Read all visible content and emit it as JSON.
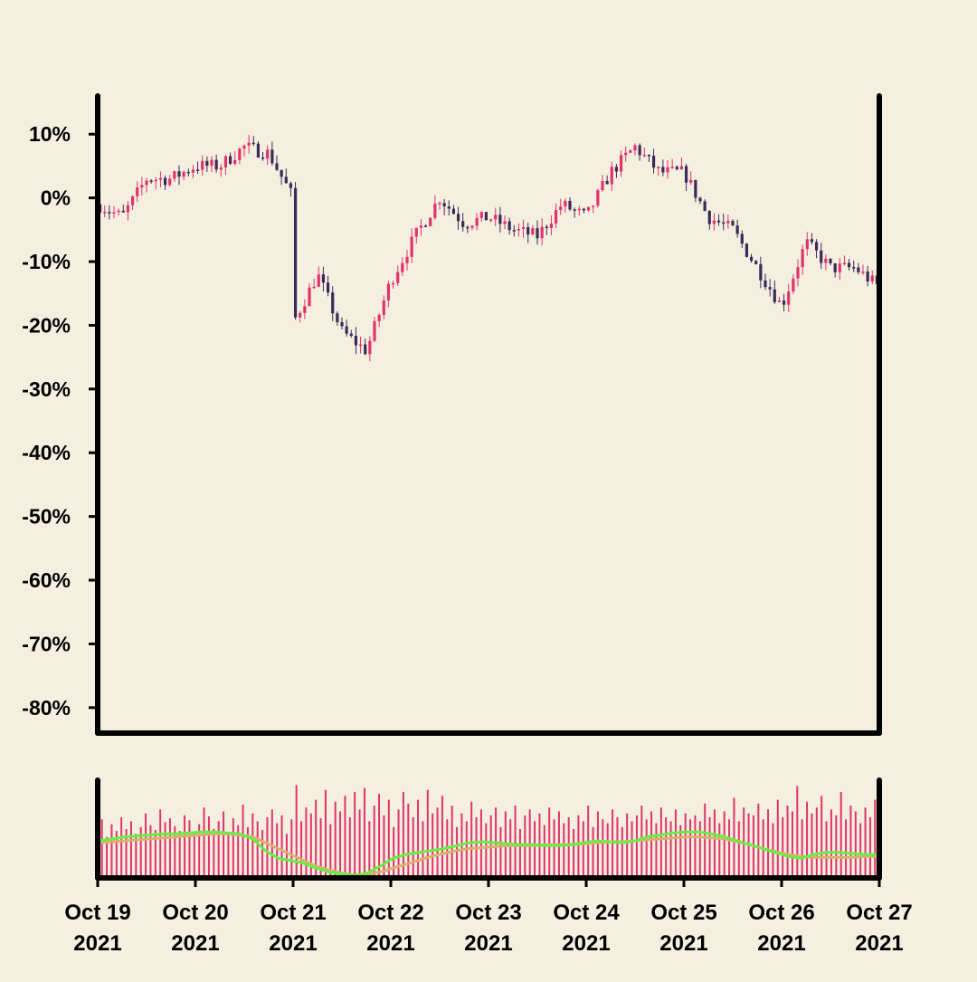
{
  "chart_data": [
    {
      "type": "candlestick",
      "title": "",
      "xlabel": "",
      "ylabel": "",
      "yticks": [
        "10%",
        "0%",
        "-10%",
        "-20%",
        "-30%",
        "-40%",
        "-50%",
        "-60%",
        "-70%",
        "-80%"
      ],
      "ylim": [
        -84,
        16
      ],
      "xlim": [
        "2021-10-19",
        "2021-10-27"
      ],
      "up_color": "#e0336d",
      "down_color": "#3b2a5a",
      "series": [
        {
          "x": [
            "2021-10-19",
            "2021-10-19 06:00",
            "2021-10-19 12:00",
            "2021-10-19 18:00",
            "2021-10-20",
            "2021-10-20 06:00",
            "2021-10-20 12:00",
            "2021-10-20 18:00",
            "2021-10-21",
            "2021-10-21 00:30",
            "2021-10-21 06:00",
            "2021-10-21 12:00",
            "2021-10-21 18:00",
            "2021-10-22",
            "2021-10-22 06:00",
            "2021-10-22 12:00",
            "2021-10-22 18:00",
            "2021-10-23",
            "2021-10-23 06:00",
            "2021-10-23 12:00",
            "2021-10-23 18:00",
            "2021-10-24",
            "2021-10-24 06:00",
            "2021-10-24 12:00",
            "2021-10-24 18:00",
            "2021-10-25",
            "2021-10-25 06:00",
            "2021-10-25 12:00",
            "2021-10-25 18:00",
            "2021-10-26",
            "2021-10-26 06:00",
            "2021-10-26 12:00",
            "2021-10-26 18:00",
            "2021-10-27"
          ],
          "close_pct": [
            -1,
            -3,
            3,
            3,
            5,
            5,
            8,
            7,
            0,
            -19,
            -12,
            -21,
            -24,
            -13,
            -6,
            0,
            -4,
            -3,
            -5,
            -6,
            -1,
            -3,
            4,
            8,
            4,
            4,
            -3,
            -5,
            -11,
            -17,
            -7,
            -11,
            -11,
            -14
          ]
        }
      ]
    },
    {
      "type": "bar",
      "title": "",
      "series": [
        {
          "name": "",
          "color": "#e0336d",
          "values": [
            60,
            42,
            55,
            48,
            62,
            50,
            58,
            45,
            52,
            66,
            54,
            49,
            70,
            57,
            61,
            53,
            48,
            64,
            59,
            46,
            55,
            72,
            63,
            50,
            58,
            68,
            47,
            61,
            54,
            75,
            52,
            66,
            58,
            49,
            62,
            70,
            56,
            64,
            45,
            60,
            95,
            58,
            72,
            66,
            80,
            61,
            90,
            55,
            78,
            68,
            84,
            62,
            88,
            70,
            92,
            58,
            74,
            86,
            64,
            80,
            52,
            70,
            88,
            76,
            62,
            80,
            58,
            90,
            66,
            72,
            84,
            60,
            74,
            52,
            66,
            58,
            78,
            62,
            70,
            56,
            64,
            72,
            52,
            68,
            60,
            74,
            50,
            64,
            70,
            58,
            66,
            54,
            72,
            60,
            68,
            56,
            62,
            50,
            64,
            58,
            74,
            52,
            68,
            60,
            56,
            70,
            62,
            52,
            66,
            58,
            64,
            74,
            60,
            68,
            56,
            72,
            62,
            58,
            70,
            54,
            66,
            60,
            64,
            58,
            76,
            62,
            70,
            56,
            68,
            60,
            82,
            58,
            72,
            66,
            64,
            76,
            60,
            70,
            56,
            80,
            62,
            74,
            68,
            94,
            60,
            78,
            66,
            72,
            84,
            58,
            70,
            64,
            88,
            60,
            74,
            68,
            56,
            72,
            62,
            80
          ]
        },
        {
          "name": "",
          "color": "#66ee44",
          "values": [
            38,
            40,
            42,
            43,
            44,
            45,
            45,
            46,
            47,
            47,
            46,
            45,
            40,
            28,
            20,
            18,
            15,
            10,
            6,
            4,
            2,
            5,
            12,
            20,
            24,
            26,
            28,
            30,
            33,
            36,
            37,
            36,
            35,
            34,
            34,
            33,
            33,
            34,
            36,
            38,
            37,
            36,
            38,
            42,
            44,
            46,
            47,
            47,
            45,
            42,
            38,
            34,
            30,
            26,
            22,
            20,
            24,
            26,
            26,
            25,
            24,
            24
          ]
        },
        {
          "name": "",
          "color": "#d9b070",
          "values": [
            36,
            37,
            38,
            39,
            40,
            41,
            42,
            43,
            44,
            45,
            45,
            44,
            42,
            36,
            30,
            24,
            18,
            12,
            8,
            5,
            3,
            4,
            6,
            10,
            14,
            18,
            22,
            25,
            28,
            30,
            31,
            32,
            33,
            33,
            33,
            34,
            34,
            34,
            35,
            36,
            37,
            37,
            38,
            39,
            40,
            41,
            42,
            42,
            41,
            40,
            37,
            34,
            30,
            27,
            24,
            22,
            21,
            21,
            21,
            21,
            22,
            22
          ]
        }
      ]
    }
  ],
  "xticks": [
    {
      "line1": "Oct 19",
      "line2": "2021"
    },
    {
      "line1": "Oct 20",
      "line2": "2021"
    },
    {
      "line1": "Oct 21",
      "line2": "2021"
    },
    {
      "line1": "Oct 22",
      "line2": "2021"
    },
    {
      "line1": "Oct 23",
      "line2": "2021"
    },
    {
      "line1": "Oct 24",
      "line2": "2021"
    },
    {
      "line1": "Oct 25",
      "line2": "2021"
    },
    {
      "line1": "Oct 26",
      "line2": "2021"
    },
    {
      "line1": "Oct 27",
      "line2": "2021"
    }
  ],
  "colors": {
    "background": "#f5efdf",
    "axis": "#000000"
  }
}
